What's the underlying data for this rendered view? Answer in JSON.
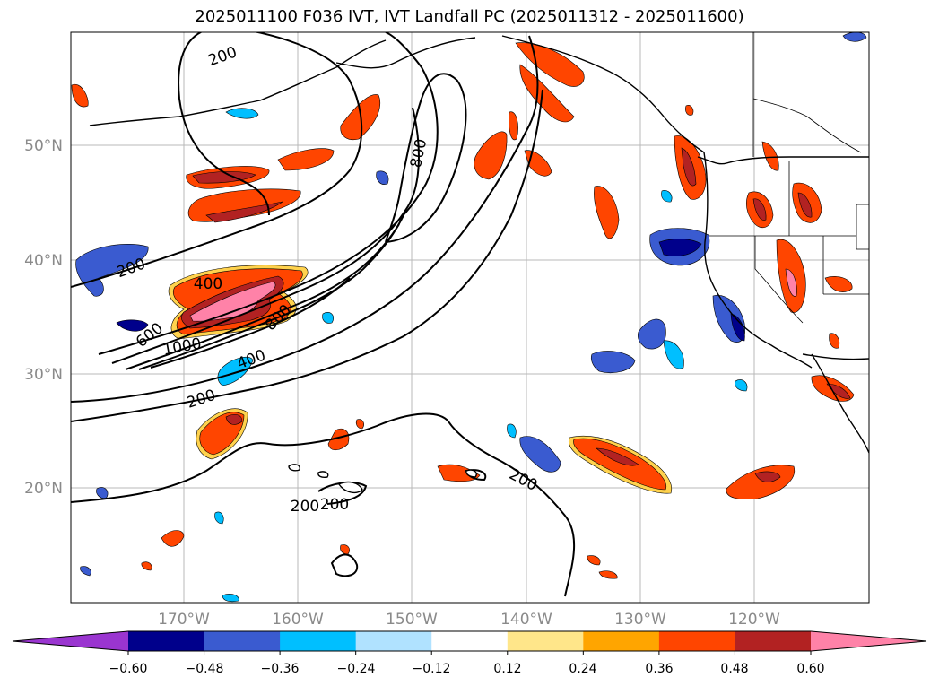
{
  "title": "2025011100 F036 IVT, IVT Landfall PC (2025011312 - 2025011600)",
  "map": {
    "lon_labels": [
      "170°W",
      "160°W",
      "150°W",
      "140°W",
      "130°W",
      "120°W"
    ],
    "lat_labels": [
      "50°N",
      "40°N",
      "30°N",
      "20°N"
    ],
    "contour_labels": [
      "200",
      "200",
      "200",
      "200",
      "200",
      "200",
      "400",
      "400",
      "600",
      "800",
      "800",
      "1000"
    ]
  },
  "colorbar": {
    "tick_labels": [
      "−0.60",
      "−0.48",
      "−0.36",
      "−0.24",
      "−0.12",
      "0.12",
      "0.24",
      "0.36",
      "0.48",
      "0.60"
    ],
    "colors": [
      "#9a35d0",
      "#00008b",
      "#3a5bd0",
      "#00bfff",
      "#b0e2ff",
      "#ffffff",
      "#ffe68a",
      "#ffa500",
      "#ff4500",
      "#b22222",
      "#ff82a8"
    ]
  }
}
